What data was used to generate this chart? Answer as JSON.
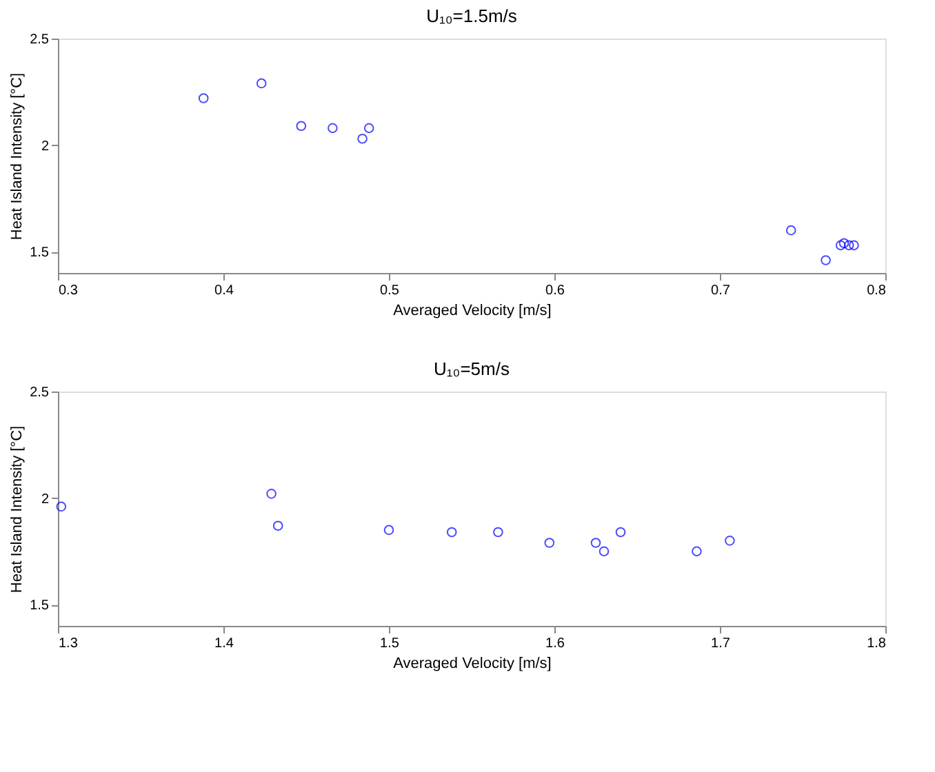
{
  "chart_data": [
    {
      "type": "scatter",
      "title": "U₁₀=1.5m/s",
      "xlabel": "Averaged Velocity [m/s]",
      "ylabel": "Heat Island Intensity [°C]",
      "marker": "circle",
      "grid": false,
      "xlim": [
        0.3,
        0.8
      ],
      "xticks": [
        0.3,
        0.4,
        0.5,
        0.6,
        0.7,
        0.8
      ],
      "ylim": [
        1.4,
        2.5
      ],
      "yticks": [
        1.5,
        2,
        2.5
      ],
      "series": [
        {
          "color": "#0000ff",
          "x": [
            0.388,
            0.423,
            0.447,
            0.466,
            0.484,
            0.488,
            0.743,
            0.764,
            0.773,
            0.775,
            0.778,
            0.781
          ],
          "values": [
            2.22,
            2.29,
            2.09,
            2.08,
            2.03,
            2.08,
            1.6,
            1.46,
            1.53,
            1.54,
            1.53,
            1.53
          ]
        }
      ]
    },
    {
      "type": "scatter",
      "title": "U₁₀=5m/s",
      "xlabel": "Averaged Velocity [m/s]",
      "ylabel": "Heat Island Intensity [°C]",
      "marker": "circle",
      "grid": false,
      "xlim": [
        1.3,
        1.8
      ],
      "xticks": [
        1.3,
        1.4,
        1.5,
        1.6,
        1.7,
        1.8
      ],
      "ylim": [
        1.4,
        2.5
      ],
      "yticks": [
        1.5,
        2,
        2.5
      ],
      "series": [
        {
          "color": "#0000ff",
          "x": [
            1.302,
            1.429,
            1.433,
            1.5,
            1.538,
            1.566,
            1.597,
            1.625,
            1.63,
            1.64,
            1.686,
            1.706
          ],
          "values": [
            1.96,
            2.02,
            1.87,
            1.85,
            1.84,
            1.84,
            1.79,
            1.79,
            1.75,
            1.84,
            1.75,
            1.8
          ]
        }
      ]
    }
  ]
}
